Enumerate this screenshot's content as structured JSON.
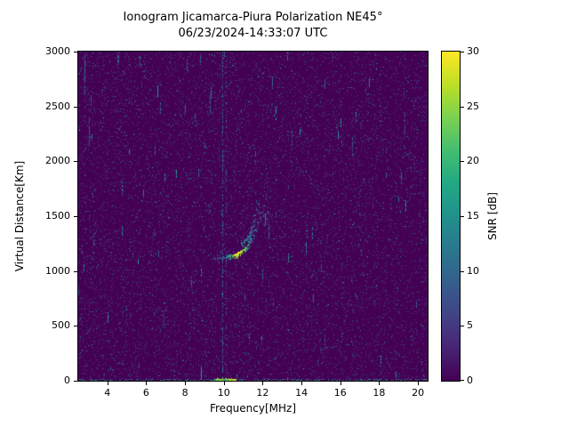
{
  "chart_data": {
    "type": "heatmap",
    "title": "Ionogram Jicamarca-Piura Polarization NE45°",
    "subtitle": "06/23/2024-14:33:07 UTC",
    "xlabel": "Frequency[MHz]",
    "ylabel": "Virtual Distance[Km]",
    "xlim": [
      2.5,
      20.5
    ],
    "ylim": [
      0,
      3000
    ],
    "x_ticks": [
      4,
      6,
      8,
      10,
      12,
      14,
      16,
      18,
      20
    ],
    "y_ticks": [
      0,
      500,
      1000,
      1500,
      2000,
      2500,
      3000
    ],
    "grid": false,
    "colormap": "viridis",
    "colorbar": {
      "label": "SNR [dB]",
      "min": 0,
      "max": 30,
      "ticks": [
        0,
        5,
        10,
        15,
        20,
        25,
        30
      ]
    },
    "background_color_floor": "#440154",
    "noise": {
      "speckle_count": 12000,
      "snr_range_db": [
        0,
        12
      ],
      "seed": 1234567
    },
    "interference_lines_mhz": [
      9.9,
      10.1
    ],
    "noise_streaks": [
      {
        "f": 2.8,
        "km0": 2600,
        "km1": 2980,
        "snr": 9
      },
      {
        "f": 3.05,
        "km0": 2150,
        "km1": 2400,
        "snr": 8
      },
      {
        "f": 4.5,
        "km0": 2850,
        "km1": 2980,
        "snr": 8
      },
      {
        "f": 6.9,
        "km0": 500,
        "km1": 650,
        "snr": 7
      },
      {
        "f": 9.3,
        "km0": 2450,
        "km1": 2600,
        "snr": 8
      },
      {
        "f": 12.3,
        "km0": 1280,
        "km1": 1450,
        "snr": 9
      },
      {
        "f": 13.5,
        "km0": 2150,
        "km1": 2300,
        "snr": 8
      },
      {
        "f": 15.2,
        "km0": 300,
        "km1": 420,
        "snr": 7
      },
      {
        "f": 16.6,
        "km0": 2050,
        "km1": 2220,
        "snr": 9
      },
      {
        "f": 19.3,
        "km0": 2250,
        "km1": 2450,
        "snr": 7
      }
    ],
    "ground_clutter": {
      "range_km": 0,
      "snr_db": [
        6,
        30
      ],
      "bright_freq_mhz": [
        9.5,
        10.6
      ]
    },
    "echo_trace": {
      "description": "Oblique F-region echo trace with multiples and spread dashes",
      "segments": [
        {
          "name": "leading-edge",
          "points": [
            [
              9.55,
              1110,
              6
            ],
            [
              9.7,
              1113,
              7
            ],
            [
              9.85,
              1117,
              8
            ],
            [
              10.0,
              1120,
              10
            ],
            [
              10.15,
              1124,
              13
            ],
            [
              10.25,
              1128,
              16
            ]
          ]
        },
        {
          "name": "main-trace",
          "points": [
            [
              10.35,
              1132,
              20
            ],
            [
              10.45,
              1137,
              24
            ],
            [
              10.55,
              1142,
              27
            ],
            [
              10.65,
              1149,
              30
            ],
            [
              10.75,
              1157,
              30
            ],
            [
              10.85,
              1166,
              29
            ],
            [
              10.95,
              1178,
              27
            ],
            [
              11.05,
              1193,
              25
            ],
            [
              11.15,
              1212,
              22
            ],
            [
              11.25,
              1236,
              19
            ]
          ]
        },
        {
          "name": "cusp-rise",
          "points": [
            [
              11.3,
              1262,
              16
            ],
            [
              11.35,
              1290,
              14
            ],
            [
              11.4,
              1322,
              13
            ],
            [
              11.45,
              1358,
              12
            ],
            [
              11.5,
              1400,
              10
            ],
            [
              11.55,
              1448,
              9
            ],
            [
              11.6,
              1505,
              8
            ]
          ]
        },
        {
          "name": "second-hop",
          "points": [
            [
              10.95,
              1245,
              13
            ],
            [
              11.05,
              1262,
              13
            ],
            [
              11.15,
              1284,
              12
            ],
            [
              11.25,
              1312,
              11
            ],
            [
              11.35,
              1348,
              10
            ],
            [
              11.45,
              1395,
              9
            ],
            [
              11.55,
              1455,
              8
            ]
          ]
        },
        {
          "name": "third-hop",
          "points": [
            [
              11.35,
              1255,
              10
            ],
            [
              11.45,
              1282,
              10
            ],
            [
              11.55,
              1320,
              9
            ],
            [
              11.65,
              1372,
              8
            ],
            [
              11.75,
              1440,
              8
            ],
            [
              11.85,
              1525,
              7
            ]
          ]
        },
        {
          "name": "spread-dashes",
          "points": [
            [
              11.7,
              1560,
              7
            ],
            [
              11.78,
              1610,
              6
            ],
            [
              11.9,
              1480,
              7
            ],
            [
              11.98,
              1535,
              6
            ],
            [
              12.05,
              1595,
              6
            ],
            [
              12.1,
              1420,
              6
            ],
            [
              12.2,
              1470,
              5
            ],
            [
              12.25,
              1530,
              5
            ]
          ]
        }
      ]
    }
  }
}
